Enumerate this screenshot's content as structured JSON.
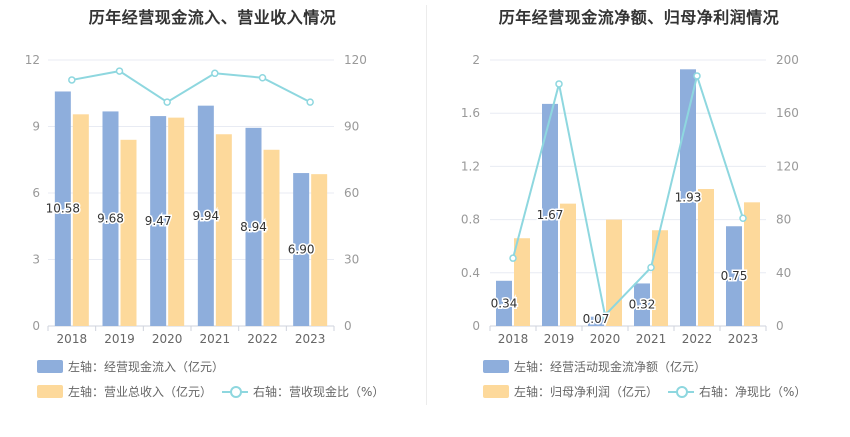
{
  "colors": {
    "bar_primary": "#8eaedc",
    "bar_secondary": "#fdd99b",
    "line": "#8ed7df",
    "axis_text": "#999999",
    "grid": "#e8ebf3"
  },
  "chart_data": [
    {
      "type": "bar",
      "title": "历年经营现金流入、营业收入情况",
      "categories": [
        "2018",
        "2019",
        "2020",
        "2021",
        "2022",
        "2023"
      ],
      "left_axis": {
        "ylim": [
          0,
          12
        ],
        "ticks": [
          "0",
          "3",
          "6",
          "9",
          "12"
        ]
      },
      "right_axis": {
        "ylim": [
          0,
          120
        ],
        "ticks": [
          "0",
          "30",
          "60",
          "90",
          "120"
        ]
      },
      "grid": true,
      "legend_position": "bottom-left",
      "series": [
        {
          "name": "左轴：经营现金流入（亿元）",
          "type": "bar",
          "axis": "left",
          "color": "#8eaedc",
          "values": [
            10.58,
            9.68,
            9.47,
            9.94,
            8.94,
            6.9
          ],
          "labels": [
            "10.58",
            "9.68",
            "9.47",
            "9.94",
            "8.94",
            "6.90"
          ]
        },
        {
          "name": "左轴：营业总收入（亿元）",
          "type": "bar",
          "axis": "left",
          "color": "#fdd99b",
          "values": [
            9.55,
            8.4,
            9.4,
            8.65,
            7.95,
            6.85
          ]
        },
        {
          "name": "右轴：营收现金比（%）",
          "type": "line",
          "axis": "right",
          "color": "#8ed7df",
          "values": [
            111,
            115,
            101,
            114,
            112,
            101
          ]
        }
      ]
    },
    {
      "type": "bar",
      "title": "历年经营现金流净额、归母净利润情况",
      "categories": [
        "2018",
        "2019",
        "2020",
        "2021",
        "2022",
        "2023"
      ],
      "left_axis": {
        "ylim": [
          0,
          2
        ],
        "ticks": [
          "0",
          "0.4",
          "0.8",
          "1.2",
          "1.6",
          "2"
        ]
      },
      "right_axis": {
        "ylim": [
          0,
          200
        ],
        "ticks": [
          "0",
          "40",
          "80",
          "120",
          "160",
          "200"
        ]
      },
      "grid": true,
      "legend_position": "bottom-left",
      "series": [
        {
          "name": "左轴：经营活动现金流净额（亿元）",
          "type": "bar",
          "axis": "left",
          "color": "#8eaedc",
          "values": [
            0.34,
            1.67,
            0.07,
            0.32,
            1.93,
            0.75
          ],
          "labels": [
            "0.34",
            "1.67",
            "0.07",
            "0.32",
            "1.93",
            "0.75"
          ]
        },
        {
          "name": "左轴：归母净利润（亿元）",
          "type": "bar",
          "axis": "left",
          "color": "#fdd99b",
          "values": [
            0.66,
            0.92,
            0.8,
            0.72,
            1.03,
            0.93
          ]
        },
        {
          "name": "右轴：净现比（%）",
          "type": "line",
          "axis": "right",
          "color": "#8ed7df",
          "values": [
            51,
            182,
            8,
            44,
            188,
            81
          ]
        }
      ]
    }
  ]
}
